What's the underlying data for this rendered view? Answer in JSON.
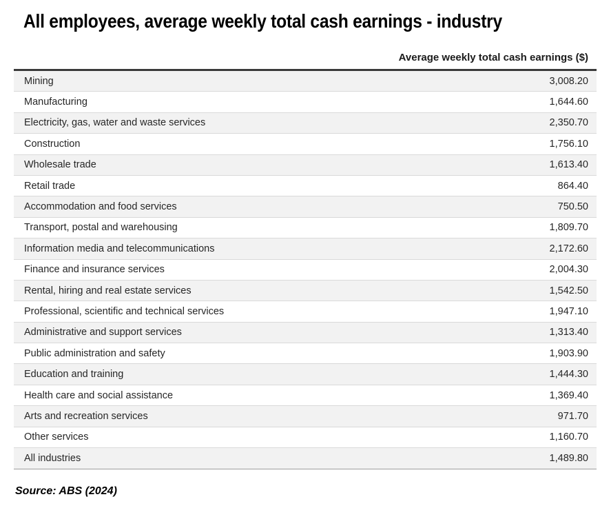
{
  "page": {
    "title": "All employees, average weekly total cash earnings - industry",
    "column_header": "Average weekly total cash earnings ($)",
    "source": "Source: ABS (2024)"
  },
  "colors": {
    "row_alt_background": "#f2f2f2",
    "row_background": "#ffffff",
    "table_top_border": "#3a3a3a",
    "table_bottom_border": "#9c9c9c",
    "row_divider": "#d9d9d9",
    "text": "#262626",
    "title_text": "#000000"
  },
  "chart_data": {
    "type": "table",
    "title": "All employees, average weekly total cash earnings - industry",
    "value_column": "Average weekly total cash earnings ($)",
    "source": "Source: ABS (2024)",
    "rows": [
      {
        "industry": "Mining",
        "value": 3008.2,
        "display": "3,008.20"
      },
      {
        "industry": "Manufacturing",
        "value": 1644.6,
        "display": "1,644.60"
      },
      {
        "industry": "Electricity, gas, water and waste services",
        "value": 2350.7,
        "display": "2,350.70"
      },
      {
        "industry": "Construction",
        "value": 1756.1,
        "display": "1,756.10"
      },
      {
        "industry": "Wholesale trade",
        "value": 1613.4,
        "display": "1,613.40"
      },
      {
        "industry": "Retail trade",
        "value": 864.4,
        "display": "864.40"
      },
      {
        "industry": "Accommodation and food services",
        "value": 750.5,
        "display": "750.50"
      },
      {
        "industry": "Transport, postal and warehousing",
        "value": 1809.7,
        "display": "1,809.70"
      },
      {
        "industry": "Information media and telecommunications",
        "value": 2172.6,
        "display": "2,172.60"
      },
      {
        "industry": "Finance and insurance services",
        "value": 2004.3,
        "display": "2,004.30"
      },
      {
        "industry": "Rental, hiring and real estate services",
        "value": 1542.5,
        "display": "1,542.50"
      },
      {
        "industry": "Professional, scientific and technical services",
        "value": 1947.1,
        "display": "1,947.10"
      },
      {
        "industry": "Administrative and support services",
        "value": 1313.4,
        "display": "1,313.40"
      },
      {
        "industry": "Public administration and safety",
        "value": 1903.9,
        "display": "1,903.90"
      },
      {
        "industry": "Education and training",
        "value": 1444.3,
        "display": "1,444.30"
      },
      {
        "industry": "Health care and social assistance",
        "value": 1369.4,
        "display": "1,369.40"
      },
      {
        "industry": "Arts and recreation services",
        "value": 971.7,
        "display": "971.70"
      },
      {
        "industry": "Other services",
        "value": 1160.7,
        "display": "1,160.70"
      },
      {
        "industry": "All industries",
        "value": 1489.8,
        "display": "1,489.80"
      }
    ]
  }
}
